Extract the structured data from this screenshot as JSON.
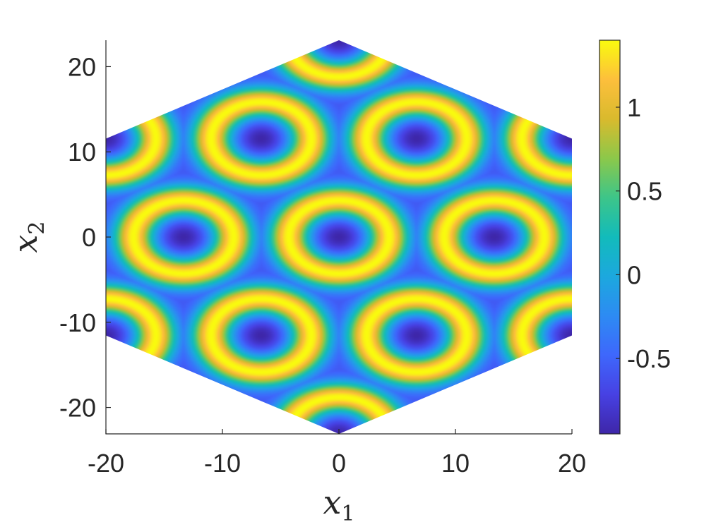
{
  "chart_data": {
    "type": "heatmap",
    "title": "",
    "xlabel": "x",
    "xlabel_subscript": "1",
    "ylabel": "x",
    "ylabel_subscript": "2",
    "xlim": [
      -20,
      20
    ],
    "ylim": [
      -23.1,
      23.1
    ],
    "x_ticks": [
      -20,
      -10,
      0,
      10,
      20
    ],
    "x_tick_labels": [
      "-20",
      "-10",
      "0",
      "10",
      "20"
    ],
    "y_ticks": [
      -20,
      -10,
      0,
      10,
      20
    ],
    "y_tick_labels": [
      "-20",
      "-10",
      "0",
      "10",
      "20"
    ],
    "domain_shape": "hexagon",
    "domain_vertices": [
      [
        0,
        23.1
      ],
      [
        20,
        11.55
      ],
      [
        20,
        -11.55
      ],
      [
        0,
        -23.1
      ],
      [
        -20,
        -11.55
      ],
      [
        -20,
        11.55
      ]
    ],
    "pattern": "hexagonal array of ring-shaped maxima around minima",
    "ring_centers": [
      [
        0,
        0
      ],
      [
        13.33,
        0
      ],
      [
        -13.33,
        0
      ],
      [
        6.67,
        11.55
      ],
      [
        -6.67,
        11.55
      ],
      [
        6.67,
        -11.55
      ],
      [
        -6.67,
        -11.55
      ],
      [
        0,
        23.1
      ],
      [
        0,
        -23.1
      ],
      [
        20,
        11.55
      ],
      [
        -20,
        11.55
      ],
      [
        20,
        -11.55
      ],
      [
        -20,
        -11.55
      ]
    ],
    "ring_radius": 4.3,
    "ring_width": 1.7,
    "center_value": -0.95,
    "background_value": -0.6,
    "ring_peak_value": 1.4,
    "colorbar": {
      "colormap": "parula",
      "limits": [
        -0.95,
        1.4
      ],
      "ticks": [
        -0.5,
        0,
        0.5,
        1
      ],
      "tick_labels": [
        "-0.5",
        "0",
        "0.5",
        "1"
      ],
      "location": "right"
    }
  }
}
